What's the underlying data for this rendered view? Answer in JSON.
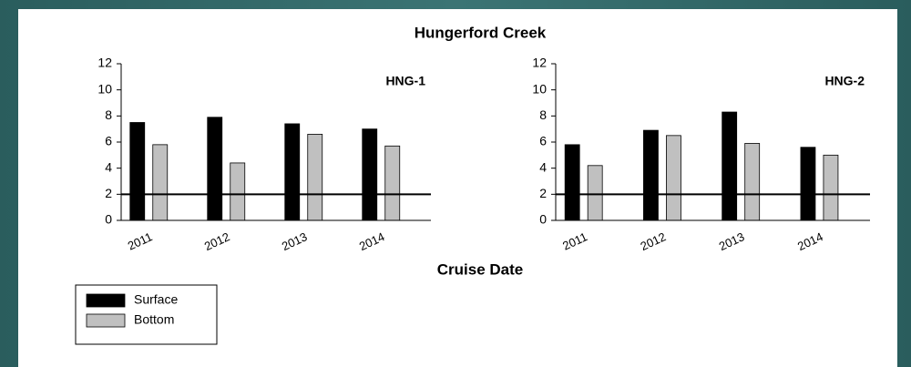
{
  "title": "Hungerford Creek",
  "xlabel": "Cruise Date",
  "chart_data": [
    {
      "type": "bar",
      "annotation": "HNG-1",
      "categories": [
        "2011",
        "2012",
        "2013",
        "2014"
      ],
      "series": [
        {
          "name": "Surface",
          "color": "#000000",
          "values": [
            7.5,
            7.9,
            7.4,
            7.0
          ]
        },
        {
          "name": "Bottom",
          "color": "#c0c0c0",
          "values": [
            5.8,
            4.4,
            6.6,
            5.7
          ]
        }
      ],
      "ylim": [
        0,
        12
      ],
      "yticks": [
        0,
        2,
        4,
        6,
        8,
        10,
        12
      ],
      "reference_line": 2
    },
    {
      "type": "bar",
      "annotation": "HNG-2",
      "categories": [
        "2011",
        "2012",
        "2013",
        "2014"
      ],
      "series": [
        {
          "name": "Surface",
          "color": "#000000",
          "values": [
            5.8,
            6.9,
            8.3,
            5.6
          ]
        },
        {
          "name": "Bottom",
          "color": "#c0c0c0",
          "values": [
            4.2,
            6.5,
            5.9,
            5.0
          ]
        }
      ],
      "ylim": [
        0,
        12
      ],
      "yticks": [
        0,
        2,
        4,
        6,
        8,
        10,
        12
      ],
      "reference_line": 2
    }
  ]
}
